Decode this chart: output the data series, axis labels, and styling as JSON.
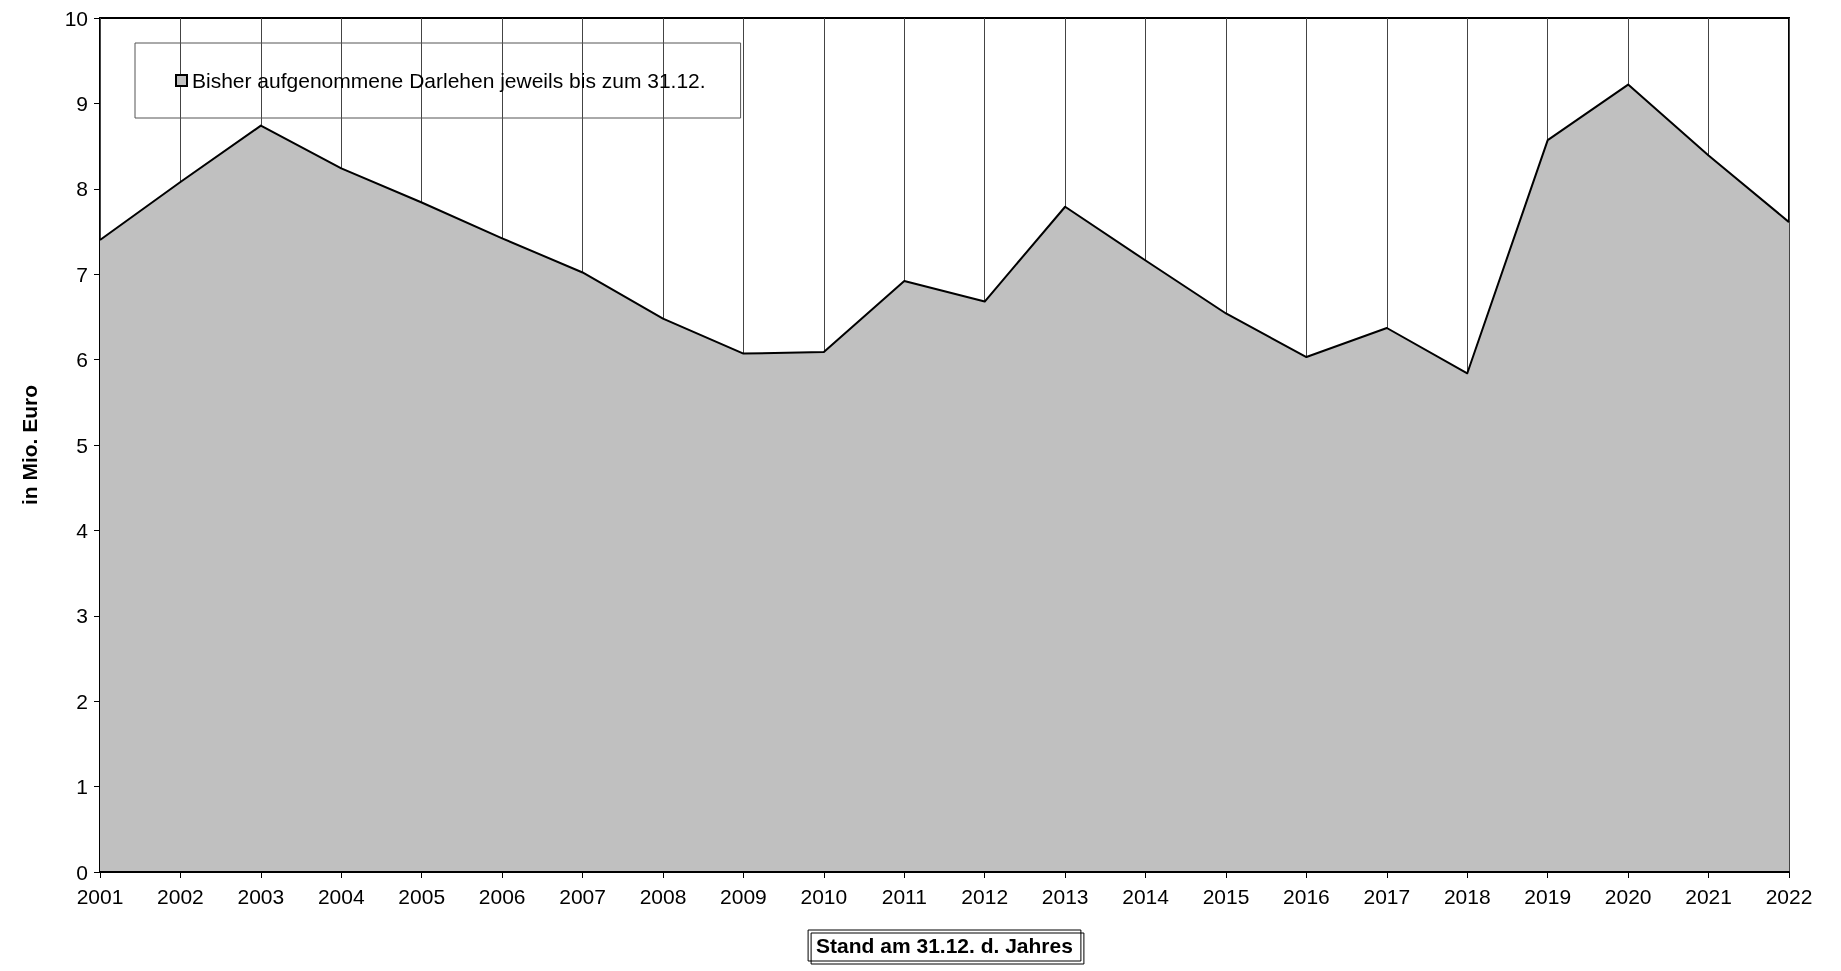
{
  "chart_data": {
    "type": "area",
    "xlabel": "Stand am 31.12. d. Jahres",
    "ylabel": "in Mio. Euro",
    "categories": [
      "2001",
      "2002",
      "2003",
      "2004",
      "2005",
      "2006",
      "2007",
      "2008",
      "2009",
      "2010",
      "2011",
      "2012",
      "2013",
      "2014",
      "2015",
      "2016",
      "2017",
      "2018",
      "2019",
      "2020",
      "2021",
      "2022"
    ],
    "series": [
      {
        "name": "Bisher aufgenommene Darlehen jeweils bis zum 31.12.",
        "color": "#c0c0c0",
        "values": [
          7.4,
          8.08,
          8.74,
          8.24,
          7.84,
          7.42,
          7.02,
          6.48,
          6.07,
          6.09,
          6.92,
          6.68,
          7.79,
          7.16,
          6.54,
          6.03,
          6.37,
          5.84,
          8.57,
          9.22,
          8.39,
          7.61
        ]
      }
    ],
    "ylim": [
      0,
      10
    ],
    "yticks": [
      0,
      1,
      2,
      3,
      4,
      5,
      6,
      7,
      8,
      9,
      10
    ],
    "grid": "x",
    "legend": "top left",
    "marker": "none"
  }
}
